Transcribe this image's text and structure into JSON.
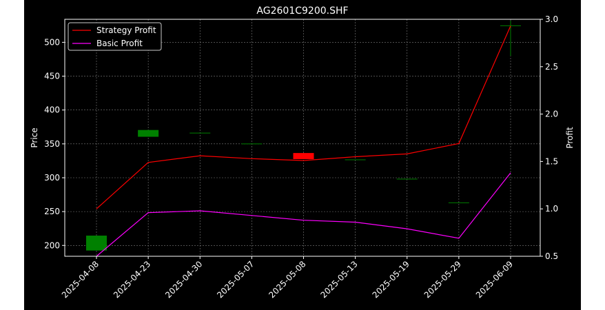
{
  "chart_data": {
    "type": "candlestick+line",
    "title": "AG2601C9200.SHF",
    "xlabel": "",
    "ylabel_left": "Price",
    "ylabel_right": "Profit",
    "categories": [
      "2025-04-08",
      "2025-04-23",
      "2025-04-30",
      "2025-05-07",
      "2025-05-08",
      "2025-05-13",
      "2025-05-19",
      "2025-05-29",
      "2025-06-09"
    ],
    "ylim_left": [
      184,
      534
    ],
    "yticks_left": [
      200,
      250,
      300,
      350,
      400,
      450,
      500
    ],
    "ylim_right": [
      0.5,
      3.0
    ],
    "yticks_right": [
      0.5,
      1.0,
      1.5,
      2.0,
      2.5,
      3.0
    ],
    "grid": true,
    "legend_position": "top-left",
    "colors": {
      "background": "#000000",
      "up": "#008000",
      "down": "#ff0000",
      "strategy": "#ff0000",
      "basic": "#ff00ff",
      "grid": "#808080"
    },
    "candles": [
      {
        "date": "2025-04-08",
        "open": 192.5,
        "close": 214.5,
        "high": 214.5,
        "low": 192.5
      },
      {
        "date": "2025-04-23",
        "open": 360.5,
        "close": 370.5,
        "high": 370.5,
        "low": 360.5
      },
      {
        "date": "2025-04-30",
        "open": 366.5,
        "close": 366.5,
        "high": 366.5,
        "low": 366.5
      },
      {
        "date": "2025-05-07",
        "open": 350.5,
        "close": 350.5,
        "high": 350.5,
        "low": 350.5
      },
      {
        "date": "2025-05-08",
        "open": 336.5,
        "close": 327.5,
        "high": 336.5,
        "low": 327.5
      },
      {
        "date": "2025-05-13",
        "open": 327.0,
        "close": 327.0,
        "high": 327.0,
        "low": 327.0
      },
      {
        "date": "2025-05-19",
        "open": 298.5,
        "close": 298.5,
        "high": 298.5,
        "low": 298.5
      },
      {
        "date": "2025-05-29",
        "open": 263.5,
        "close": 263.5,
        "high": 263.5,
        "low": 263.5
      },
      {
        "date": "2025-06-09",
        "open": 525.0,
        "close": 525.0,
        "high": 532.0,
        "low": 480.0
      }
    ],
    "series": [
      {
        "name": "Strategy Profit",
        "axis": "right",
        "color": "#ff0000",
        "values": [
          1.0,
          1.49,
          1.56,
          1.53,
          1.51,
          1.55,
          1.58,
          1.69,
          2.93
        ]
      },
      {
        "name": "Basic Profit",
        "axis": "right",
        "color": "#ff00ff",
        "values": [
          0.5,
          0.96,
          0.98,
          0.93,
          0.88,
          0.86,
          0.79,
          0.69,
          1.38
        ]
      }
    ]
  }
}
